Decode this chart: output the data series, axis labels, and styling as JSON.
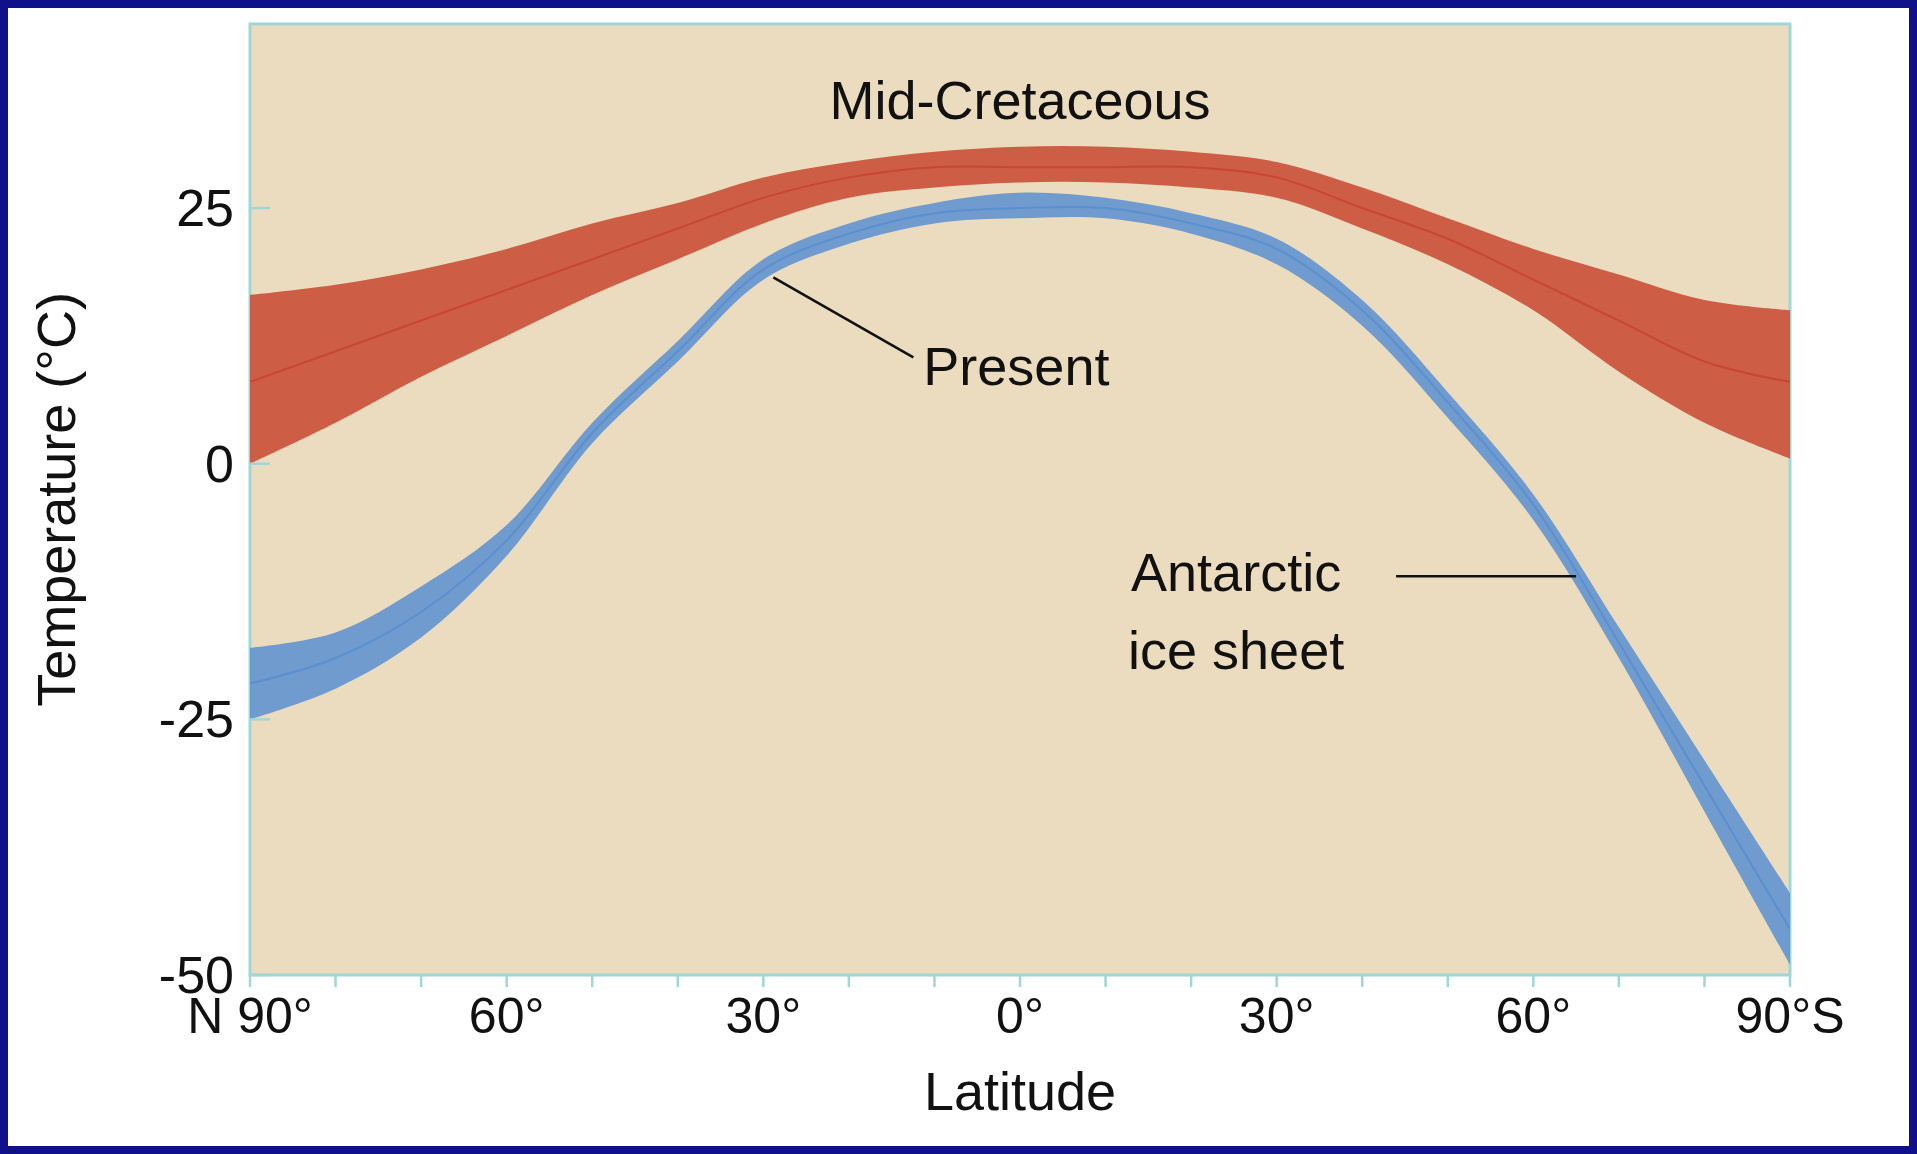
{
  "chart_data": {
    "type": "line",
    "xlabel": "Latitude",
    "ylabel": "Temperature (°C)",
    "x": [
      90,
      80,
      70,
      60,
      50,
      40,
      30,
      20,
      10,
      0,
      -10,
      -20,
      -30,
      -40,
      -50,
      -60,
      -70,
      -80,
      -90
    ],
    "xlim": [
      90,
      -90
    ],
    "xticks": [
      {
        "value": 90,
        "label": "N 90°"
      },
      {
        "value": 80,
        "label": null
      },
      {
        "value": 70,
        "label": null
      },
      {
        "value": 60,
        "label": "60°"
      },
      {
        "value": 50,
        "label": null
      },
      {
        "value": 40,
        "label": null
      },
      {
        "value": 30,
        "label": "30°"
      },
      {
        "value": 20,
        "label": null
      },
      {
        "value": 10,
        "label": null
      },
      {
        "value": 0,
        "label": "0°"
      },
      {
        "value": -10,
        "label": null
      },
      {
        "value": -20,
        "label": null
      },
      {
        "value": -30,
        "label": "30°"
      },
      {
        "value": -40,
        "label": null
      },
      {
        "value": -50,
        "label": null
      },
      {
        "value": -60,
        "label": "60°"
      },
      {
        "value": -70,
        "label": null
      },
      {
        "value": -80,
        "label": null
      },
      {
        "value": -90,
        "label": "90°S"
      }
    ],
    "ylim": [
      -50,
      43
    ],
    "yticks": [
      -50,
      -25,
      0,
      25
    ],
    "grid": false,
    "marker": "none",
    "line_style": "solid",
    "series": [
      {
        "name": "Mid-Cretaceous",
        "color": "#c9462f",
        "values": [
          8,
          11,
          14,
          17,
          20,
          23,
          26,
          28,
          29,
          29,
          29,
          29,
          28,
          25,
          22,
          18,
          14,
          10,
          8
        ],
        "lower": [
          0,
          4,
          8.5,
          12.5,
          16.5,
          20,
          23.5,
          26,
          27,
          27.5,
          27.5,
          27,
          26,
          23,
          19.5,
          15,
          9,
          4,
          0.5
        ],
        "upper": [
          16.5,
          17.5,
          19,
          21,
          23.5,
          25.5,
          28,
          29.5,
          30.5,
          31,
          31,
          30.5,
          29.5,
          27,
          24,
          21,
          18.5,
          16,
          15
        ]
      },
      {
        "name": "Present",
        "color": "#5a8fd0",
        "values": [
          -21.5,
          -19,
          -14.5,
          -7.5,
          3,
          11,
          19,
          22.5,
          24.5,
          25,
          25,
          23.5,
          21,
          15,
          6,
          -4,
          -17.5,
          -31.5,
          -45.5
        ],
        "lower": [
          -25,
          -22,
          -17,
          -9,
          2,
          10,
          18,
          21.5,
          23.5,
          24,
          24,
          22.5,
          19.5,
          13.5,
          4.5,
          -5.5,
          -19,
          -34,
          -49
        ],
        "upper": [
          -18,
          -16.5,
          -12,
          -6,
          4,
          12,
          20,
          23.5,
          25.5,
          26.5,
          26,
          24.5,
          22,
          16,
          7,
          -3,
          -16,
          -29,
          -42
        ]
      }
    ],
    "annotations": [
      {
        "text": "Antarctic ice sheet",
        "x": -65,
        "y": -11
      }
    ]
  }
}
